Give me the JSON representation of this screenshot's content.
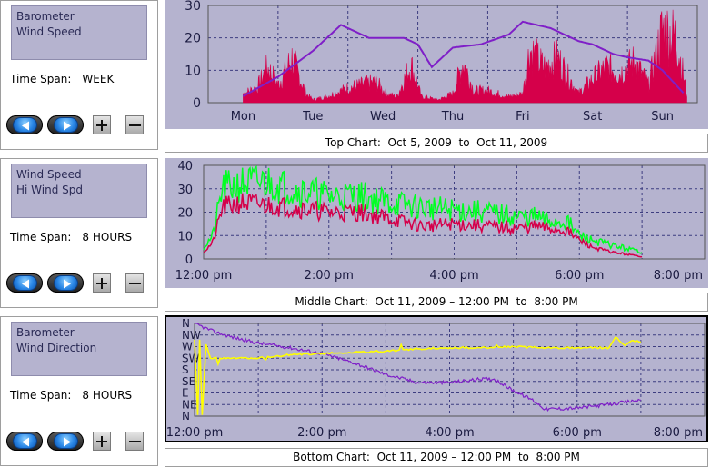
{
  "panels": [
    {
      "series_labels": [
        "Barometer",
        "Wind Speed"
      ],
      "time_span_label": "Time Span:",
      "time_span_value": "WEEK",
      "caption": "Top Chart:  Oct 5, 2009  to  Oct 11, 2009"
    },
    {
      "series_labels": [
        "Wind Speed",
        "Hi Wind Spd"
      ],
      "time_span_label": "Time Span:",
      "time_span_value": "8 HOURS",
      "caption": "Middle Chart:  Oct 11, 2009 – 12:00 PM  to  8:00 PM"
    },
    {
      "series_labels": [
        "Barometer",
        "Wind Direction"
      ],
      "time_span_label": "Time Span:",
      "time_span_value": "8 HOURS",
      "caption": "Bottom Chart:  Oct 11, 2009 – 12:00 PM  to  8:00 PM"
    }
  ],
  "buttons": {
    "back_icon": "left-arrow-icon",
    "forward_icon": "right-arrow-icon",
    "zoom_in_icon": "plus-icon",
    "zoom_out_icon": "minus-icon"
  },
  "colors": {
    "plot_bg": "#b5b3cf",
    "grid": "#3d3d80",
    "barometer": "#7f1fc8",
    "wind_speed": "#d5004a",
    "hi_wind_speed": "#00ff22",
    "wind_direction": "#ffff00"
  },
  "chart_data": [
    {
      "type": "area",
      "x_categories": [
        "Mon",
        "Tue",
        "Wed",
        "Thu",
        "Fri",
        "Sat",
        "Sun"
      ],
      "ylim": [
        0,
        30
      ],
      "y_ticks": [
        "0",
        "10",
        "20",
        "30"
      ],
      "grid": true,
      "series": [
        {
          "name": "Barometer",
          "color": "#7f1fc8",
          "style": "line",
          "x": [
            0,
            0.5,
            1.0,
            1.4,
            1.8,
            2.3,
            2.5,
            2.7,
            3.0,
            3.4,
            3.8,
            4.0,
            4.4,
            4.8,
            5.0,
            5.3,
            5.5,
            5.8,
            6.0,
            6.3
          ],
          "y": [
            2,
            8,
            16,
            24,
            20,
            20,
            18,
            11,
            17,
            18,
            21,
            25,
            23,
            19,
            18,
            15,
            14,
            13,
            10,
            3
          ]
        },
        {
          "name": "Wind Speed",
          "color": "#d5004a",
          "style": "area",
          "x": [
            0,
            0.2,
            0.35,
            0.5,
            0.7,
            0.9,
            1.0,
            1.2,
            1.5,
            1.9,
            2.05,
            2.2,
            2.4,
            2.55,
            2.8,
            3.0,
            3.15,
            3.3,
            3.5,
            3.8,
            4.0,
            4.1,
            4.3,
            4.5,
            4.8,
            5.0,
            5.2,
            5.4,
            5.6,
            5.8,
            6.0,
            6.2,
            6.35
          ],
          "y": [
            3,
            5,
            12,
            6,
            15,
            3,
            1,
            2,
            5,
            7,
            3,
            2,
            13,
            2,
            1,
            3,
            14,
            4,
            4,
            2,
            3,
            18,
            12,
            15,
            3,
            8,
            12,
            10,
            14,
            6,
            25,
            22,
            3
          ]
        }
      ]
    },
    {
      "type": "area",
      "x_ticks": [
        "12:00 pm",
        "2:00 pm",
        "4:00 pm",
        "6:00 pm",
        "8:00 pm"
      ],
      "x_hours": [
        0,
        2,
        4,
        6,
        8
      ],
      "ylim": [
        0,
        40
      ],
      "y_ticks": [
        "0",
        "10",
        "20",
        "30",
        "40"
      ],
      "grid": true,
      "series": [
        {
          "name": "Hi Wind Spd",
          "color": "#00ff22",
          "x": [
            0,
            0.15,
            0.3,
            0.6,
            1.0,
            1.4,
            2.0,
            2.5,
            3.0,
            3.5,
            4.0,
            4.5,
            5.0,
            5.3,
            5.5,
            5.8,
            6.0,
            6.2,
            6.5,
            7.0
          ],
          "y": [
            5,
            10,
            30,
            32,
            33,
            30,
            27,
            27,
            24,
            22,
            21,
            20,
            18,
            18,
            16,
            16,
            10,
            8,
            6,
            3
          ]
        },
        {
          "name": "Wind Speed",
          "color": "#d5004a",
          "x": [
            0,
            0.15,
            0.3,
            0.6,
            1.0,
            1.4,
            2.0,
            2.5,
            3.0,
            3.5,
            4.0,
            4.5,
            5.0,
            5.3,
            5.5,
            5.8,
            6.0,
            6.2,
            6.5,
            7.0
          ],
          "y": [
            3,
            7,
            22,
            24,
            23,
            22,
            20,
            20,
            17,
            14,
            15,
            14,
            13,
            14,
            13,
            12,
            8,
            5,
            3,
            1
          ]
        }
      ]
    },
    {
      "type": "line",
      "x_ticks": [
        "12:00 pm",
        "2:00 pm",
        "4:00 pm",
        "6:00 pm",
        "8:00 pm"
      ],
      "x_hours": [
        0,
        2,
        4,
        6,
        8
      ],
      "y_categories": [
        "N",
        "NE",
        "E",
        "SE",
        "S",
        "SW",
        "W",
        "NW",
        "N"
      ],
      "grid": true,
      "series": [
        {
          "name": "Barometer",
          "color": "#7f1fc8",
          "style": "line",
          "x": [
            0,
            0.3,
            0.6,
            1.0,
            1.5,
            2.0,
            2.5,
            3.0,
            3.5,
            4.0,
            4.5,
            4.7,
            5.0,
            5.3,
            5.5,
            6.0,
            6.5,
            7.0
          ],
          "y": [
            8,
            7.3,
            6.8,
            6.3,
            5.9,
            5.4,
            4.6,
            3.6,
            2.9,
            2.9,
            3.2,
            3.2,
            2.2,
            1.4,
            0.6,
            0.7,
            1.0,
            1.4
          ]
        },
        {
          "name": "Wind Direction",
          "color": "#ffff00",
          "style": "line",
          "x": [
            0,
            0.05,
            0.08,
            0.12,
            0.18,
            0.25,
            0.5,
            1.0,
            1.5,
            2.0,
            2.5,
            3.0,
            3.5,
            4.0,
            4.5,
            5.0,
            5.5,
            6.0,
            6.3,
            6.5,
            6.6,
            6.75,
            6.85,
            7.0
          ],
          "y": [
            6.6,
            0.1,
            6.6,
            0.1,
            6.2,
            5.0,
            5.0,
            5.0,
            5.3,
            5.4,
            5.5,
            5.6,
            5.8,
            5.9,
            5.9,
            6.0,
            5.9,
            5.9,
            5.9,
            5.9,
            6.8,
            6.1,
            6.5,
            6.4
          ]
        }
      ]
    }
  ]
}
